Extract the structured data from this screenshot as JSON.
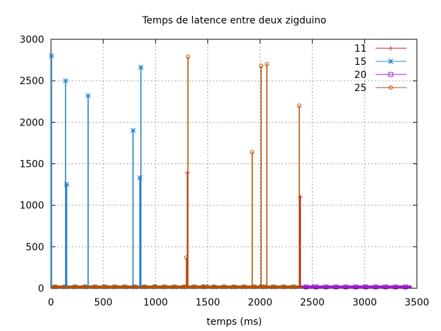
{
  "chart_data": {
    "type": "line",
    "title": "Temps de latence entre deux zigduino",
    "xlabel": "temps (ms)",
    "ylabel": "",
    "xlim": [
      0,
      3500
    ],
    "ylim": [
      0,
      3000
    ],
    "xticks": [
      0,
      500,
      1000,
      1500,
      2000,
      2500,
      3000,
      3500
    ],
    "yticks": [
      0,
      500,
      1000,
      1500,
      2000,
      2500,
      3000
    ],
    "grid": true,
    "legend_position": "top-right",
    "series": [
      {
        "name": "11",
        "color": "#c0141c",
        "marker": "plus",
        "spikes": [
          [
            1305,
            1390
          ],
          [
            2385,
            1100
          ]
        ],
        "baseline_range": [
          0,
          2400
        ]
      },
      {
        "name": "15",
        "color": "#1f7fc4",
        "marker": "star",
        "spikes": [
          [
            5,
            2800
          ],
          [
            140,
            2500
          ],
          [
            150,
            1250
          ],
          [
            355,
            2320
          ],
          [
            785,
            1900
          ],
          [
            850,
            1330
          ],
          [
            860,
            2660
          ]
        ],
        "baseline_range": [
          0,
          2400
        ]
      },
      {
        "name": "20",
        "color": "#9a1ccc",
        "marker": "square",
        "spikes": [],
        "baseline_range": [
          2400,
          3450
        ]
      },
      {
        "name": "25",
        "color": "#b85000",
        "marker": "circle",
        "spikes": [
          [
            1295,
            370
          ],
          [
            1310,
            2790
          ],
          [
            1455,
            20
          ],
          [
            1925,
            1640
          ],
          [
            2010,
            2680
          ],
          [
            2065,
            2700
          ],
          [
            2375,
            2200
          ]
        ],
        "baseline_range": [
          0,
          2400
        ]
      }
    ]
  }
}
